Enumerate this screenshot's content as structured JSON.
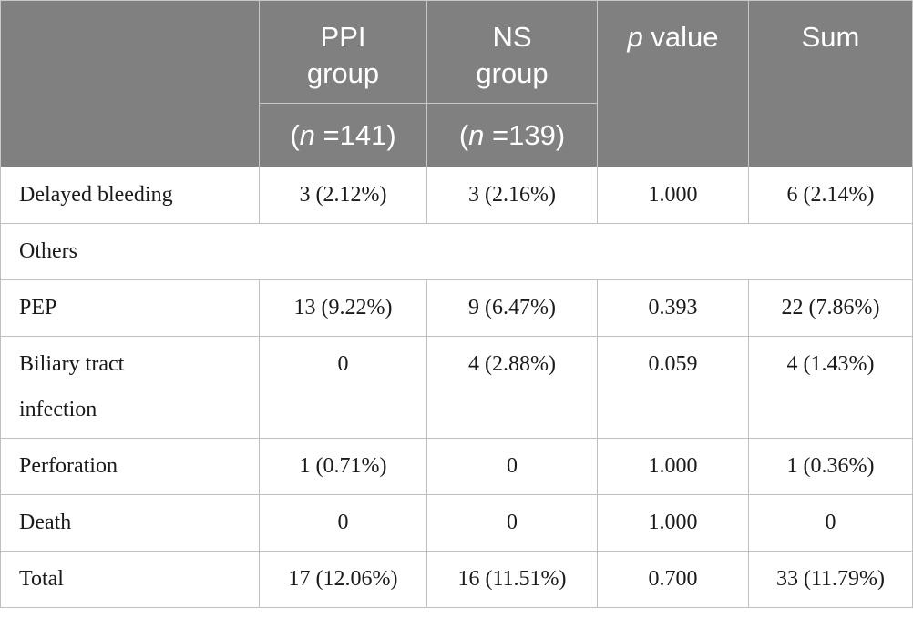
{
  "header": {
    "ppi_line1": "PPI",
    "ppi_line2": "group",
    "ns_line1": "NS",
    "ns_line2": "group",
    "pval_italic": "p",
    "pval_rest": " value",
    "sum": "Sum",
    "ppi_n_italic": "n",
    "ppi_n_rest": " =141)",
    "ns_n_italic": "n",
    "ns_n_rest": " =139)",
    "paren_open": "("
  },
  "rows": [
    {
      "label": "Delayed bleeding",
      "ppi": "3 (2.12%)",
      "ns": "3 (2.16%)",
      "p": "1.000",
      "sum": "6 (2.14%)"
    },
    {
      "label": "Others"
    },
    {
      "label": "PEP",
      "ppi": "13 (9.22%)",
      "ns": "9 (6.47%)",
      "p": "0.393",
      "sum": "22 (7.86%)"
    },
    {
      "label_line1": "Biliary tract",
      "label_line2": "infection",
      "ppi": "0",
      "ns": "4 (2.88%)",
      "p": "0.059",
      "sum": "4 (1.43%)"
    },
    {
      "label": "Perforation",
      "ppi": "1 (0.71%)",
      "ns": "0",
      "p": "1.000",
      "sum": "1 (0.36%)"
    },
    {
      "label": "Death",
      "ppi": "0",
      "ns": "0",
      "p": "1.000",
      "sum": "0"
    },
    {
      "label": "Total",
      "ppi": "17 (12.06%)",
      "ns": "16 (11.51%)",
      "p": "0.700",
      "sum": "33 (11.79%)"
    }
  ]
}
